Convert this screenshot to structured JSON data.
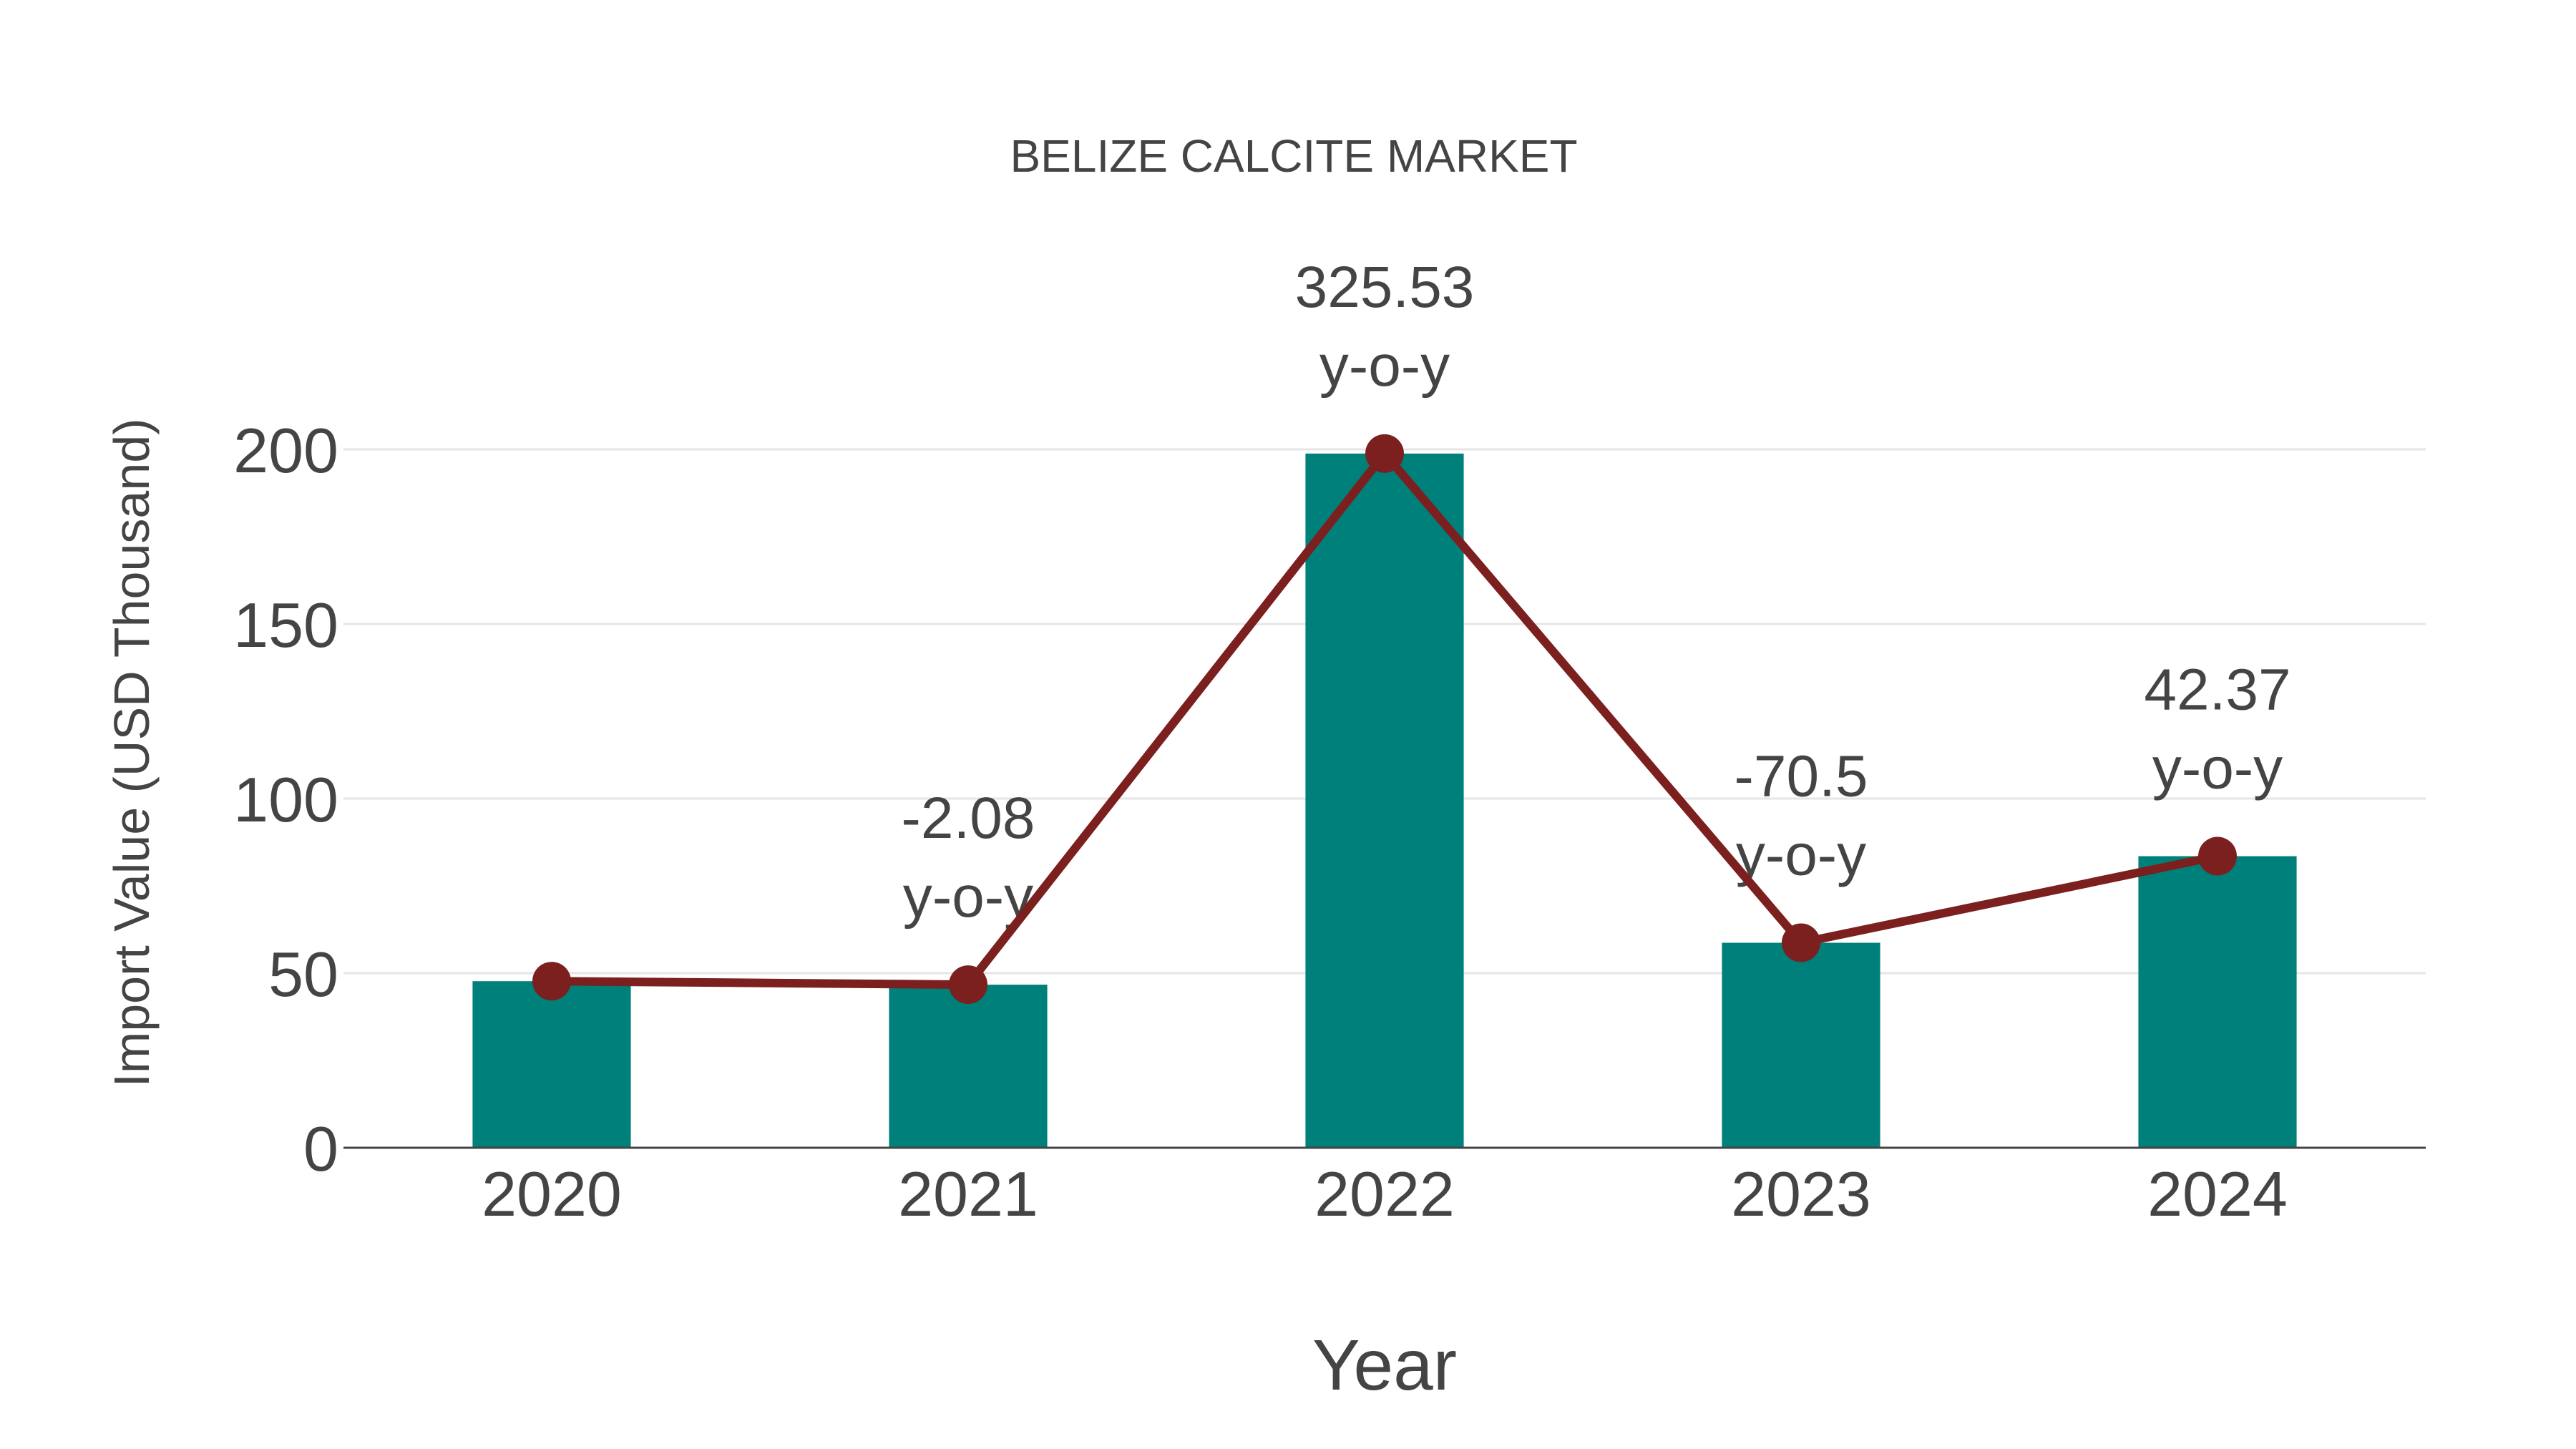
{
  "chart_data": {
    "type": "bar",
    "title": "BELIZE CALCITE MARKET",
    "xlabel": "Year",
    "ylabel": "Import Value (USD Thousand)",
    "categories": [
      "2020",
      "2021",
      "2022",
      "2023",
      "2024"
    ],
    "series": [
      {
        "name": "Import Value",
        "type": "bar",
        "color": "#00807a",
        "values": [
          47.7,
          46.7,
          198.8,
          58.7,
          83.5
        ]
      },
      {
        "name": "Import Value (line)",
        "type": "line",
        "color": "#7b1f1f",
        "values": [
          47.7,
          46.7,
          198.8,
          58.7,
          83.5
        ]
      }
    ],
    "annotations": [
      {
        "category": "2021",
        "value": "-2.08",
        "suffix": "y-o-y"
      },
      {
        "category": "2022",
        "value": "325.53",
        "suffix": "y-o-y"
      },
      {
        "category": "2023",
        "value": "-70.5",
        "suffix": "y-o-y"
      },
      {
        "category": "2024",
        "value": "42.37",
        "suffix": "y-o-y"
      }
    ],
    "yticks": [
      0,
      50,
      100,
      150,
      200
    ],
    "ylim": [
      0,
      200
    ],
    "grid": true,
    "legend": "none"
  },
  "colors": {
    "bar": "#00807a",
    "line": "#7b1f1f",
    "text": "#444444",
    "grid": "#e6e6e6"
  }
}
